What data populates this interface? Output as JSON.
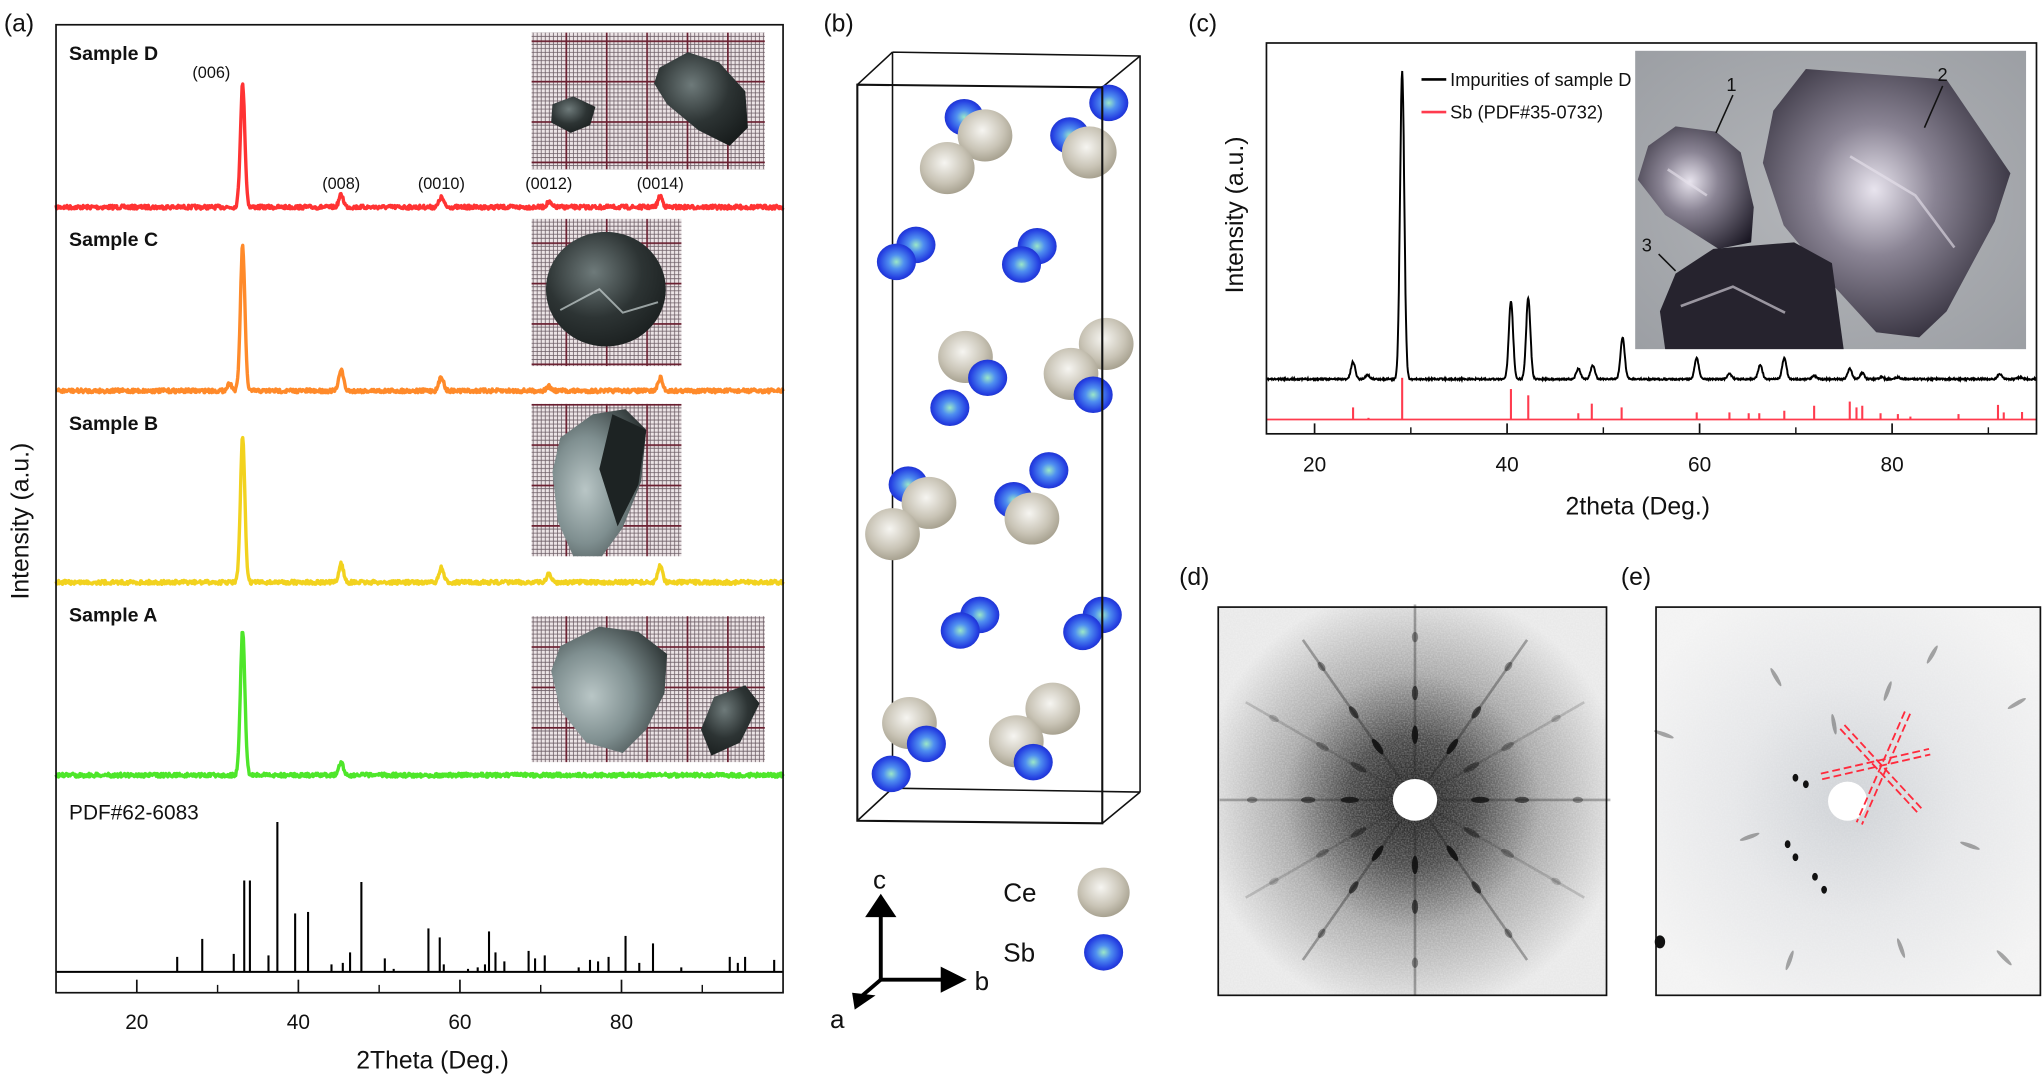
{
  "panels": {
    "a": "(a)",
    "b": "(b)",
    "c": "(c)",
    "d": "(d)",
    "e": "(e)"
  },
  "chart_data": [
    {
      "panel": "(a)",
      "type": "line",
      "xlabel": "2Theta (Deg.)",
      "ylabel": "Intensity (a.u.)",
      "xlim": [
        10,
        100
      ],
      "xticks": [
        20,
        40,
        60,
        80
      ],
      "grid": false,
      "series": [
        {
          "name": "Sample D",
          "color": "#ff3333",
          "peaks": [
            [
              33.1,
              1.0
            ],
            [
              45.3,
              0.1
            ],
            [
              57.7,
              0.08
            ],
            [
              71.0,
              0.04
            ],
            [
              84.8,
              0.09
            ]
          ]
        },
        {
          "name": "Sample C",
          "color": "#ff8a2a",
          "peaks": [
            [
              31.5,
              0.05
            ],
            [
              33.1,
              1.0
            ],
            [
              45.3,
              0.15
            ],
            [
              57.7,
              0.1
            ],
            [
              71.0,
              0.03
            ],
            [
              84.8,
              0.09
            ]
          ]
        },
        {
          "name": "Sample B",
          "color": "#f2d21e",
          "peaks": [
            [
              33.1,
              1.0
            ],
            [
              45.3,
              0.13
            ],
            [
              57.7,
              0.1
            ],
            [
              71.0,
              0.06
            ],
            [
              84.8,
              0.12
            ]
          ]
        },
        {
          "name": "Sample A",
          "color": "#4ee62a",
          "peaks": [
            [
              33.1,
              1.0
            ],
            [
              45.3,
              0.09
            ]
          ]
        }
      ],
      "peak_labels": [
        {
          "label": "(006)",
          "x": 33.1
        },
        {
          "label": "(008)",
          "x": 45.3
        },
        {
          "label": "(0010)",
          "x": 57.7
        },
        {
          "label": "(0012)",
          "x": 71.0
        },
        {
          "label": "(0014)",
          "x": 84.8
        }
      ],
      "reference": {
        "name": "PDF#62-6083",
        "color": "#000000",
        "sticks": [
          [
            25.0,
            0.1
          ],
          [
            28.1,
            0.22
          ],
          [
            32.0,
            0.12
          ],
          [
            33.3,
            0.61
          ],
          [
            34.0,
            0.61
          ],
          [
            36.3,
            0.11
          ],
          [
            37.4,
            1.0
          ],
          [
            39.6,
            0.39
          ],
          [
            41.2,
            0.4
          ],
          [
            44.1,
            0.05
          ],
          [
            45.5,
            0.06
          ],
          [
            46.4,
            0.13
          ],
          [
            47.8,
            0.6
          ],
          [
            50.7,
            0.09
          ],
          [
            51.8,
            0.02
          ],
          [
            56.1,
            0.29
          ],
          [
            57.5,
            0.23
          ],
          [
            58.0,
            0.05
          ],
          [
            61.0,
            0.02
          ],
          [
            62.2,
            0.03
          ],
          [
            63.1,
            0.05
          ],
          [
            63.6,
            0.27
          ],
          [
            64.4,
            0.13
          ],
          [
            65.5,
            0.07
          ],
          [
            68.5,
            0.14
          ],
          [
            69.3,
            0.09
          ],
          [
            70.5,
            0.11
          ],
          [
            74.7,
            0.03
          ],
          [
            76.1,
            0.08
          ],
          [
            77.1,
            0.07
          ],
          [
            78.4,
            0.1
          ],
          [
            80.5,
            0.24
          ],
          [
            82.2,
            0.06
          ],
          [
            83.9,
            0.19
          ],
          [
            87.4,
            0.03
          ],
          [
            93.4,
            0.1
          ],
          [
            94.4,
            0.06
          ],
          [
            95.3,
            0.1
          ],
          [
            98.9,
            0.08
          ]
        ]
      },
      "insets": [
        "Sample D crystals on grid paper",
        "Sample C crystal on grid paper",
        "Sample B crystal on grid paper",
        "Sample A crystals on grid paper"
      ]
    },
    {
      "panel": "(c)",
      "type": "line",
      "xlabel": "2theta (Deg.)",
      "ylabel": "Intensity (a.u.)",
      "xlim": [
        15,
        95
      ],
      "xticks": [
        20,
        40,
        60,
        80
      ],
      "xminor": [
        30,
        50,
        70,
        90
      ],
      "grid": false,
      "legend_position": "top-left",
      "series": [
        {
          "name": "Impurities of sample D",
          "color": "#000000",
          "peaks": [
            [
              24.0,
              0.056
            ],
            [
              25.5,
              0.013
            ],
            [
              29.1,
              1.0
            ],
            [
              40.4,
              0.253
            ],
            [
              42.2,
              0.264
            ],
            [
              47.4,
              0.034
            ],
            [
              48.9,
              0.045
            ],
            [
              52.0,
              0.135
            ],
            [
              59.7,
              0.067
            ],
            [
              63.1,
              0.017
            ],
            [
              66.3,
              0.045
            ],
            [
              68.8,
              0.067
            ],
            [
              71.9,
              0.011
            ],
            [
              75.6,
              0.034
            ],
            [
              76.9,
              0.02
            ],
            [
              78.9,
              0.006
            ],
            [
              80.6,
              0.006
            ],
            [
              91.2,
              0.017
            ],
            [
              93.3,
              0.006
            ]
          ]
        },
        {
          "name": "Sb (PDF#35-0732)",
          "color": "#ff3b4e",
          "sticks": [
            [
              24.0,
              0.29
            ],
            [
              25.6,
              0.04
            ],
            [
              29.1,
              1.0
            ],
            [
              40.4,
              0.73
            ],
            [
              42.2,
              0.58
            ],
            [
              47.4,
              0.15
            ],
            [
              48.8,
              0.38
            ],
            [
              51.9,
              0.29
            ],
            [
              59.7,
              0.17
            ],
            [
              63.1,
              0.17
            ],
            [
              65.1,
              0.15
            ],
            [
              66.2,
              0.15
            ],
            [
              68.8,
              0.21
            ],
            [
              71.9,
              0.33
            ],
            [
              75.6,
              0.43
            ],
            [
              76.3,
              0.29
            ],
            [
              76.9,
              0.33
            ],
            [
              78.8,
              0.15
            ],
            [
              80.6,
              0.13
            ],
            [
              81.9,
              0.07
            ],
            [
              86.9,
              0.13
            ],
            [
              91.0,
              0.35
            ],
            [
              91.6,
              0.17
            ],
            [
              93.5,
              0.18
            ]
          ]
        }
      ],
      "inset_labels": [
        "1",
        "2",
        "3"
      ]
    }
  ],
  "structure": {
    "axes": {
      "a": "a",
      "b": "b",
      "c": "c"
    },
    "legend": [
      {
        "label": "Ce",
        "color": "#b8b2a3"
      },
      {
        "label": "Sb",
        "color": "#2b47e8"
      }
    ]
  },
  "diffraction": {
    "overlay_color": "#ff2a3c"
  }
}
